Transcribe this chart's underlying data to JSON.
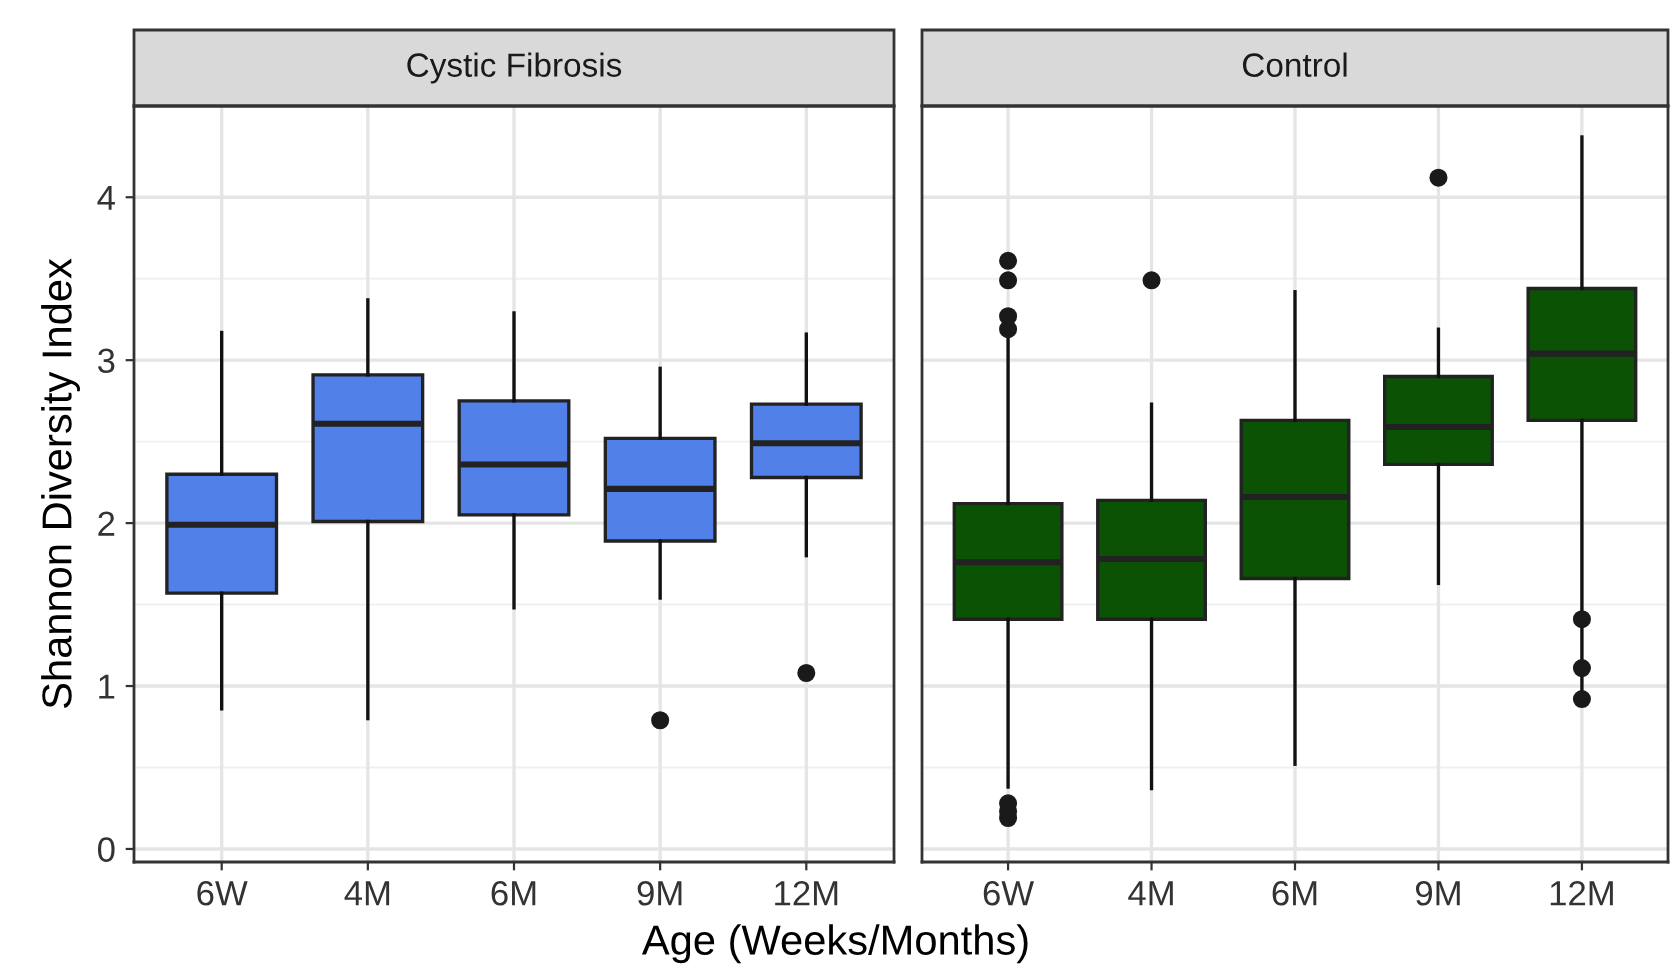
{
  "chart_data": [
    {
      "type": "box",
      "title": "Cystic Fibrosis",
      "xlabel": "Age (Weeks/Months)",
      "ylabel": "Shannon Diversity Index",
      "categories": [
        "6W",
        "4M",
        "6M",
        "9M",
        "12M"
      ],
      "ylim": [
        -0.08,
        4.56
      ],
      "yticks": [
        0,
        1,
        2,
        3,
        4
      ],
      "grid": true,
      "series": [
        {
          "color": "#5080e8",
          "boxes": [
            {
              "low": 0.86,
              "q1": 1.57,
              "median": 1.99,
              "q3": 2.3,
              "high": 3.17
            },
            {
              "low": 0.8,
              "q1": 2.01,
              "median": 2.61,
              "q3": 2.91,
              "high": 3.37
            },
            {
              "low": 1.48,
              "q1": 2.05,
              "median": 2.36,
              "q3": 2.75,
              "high": 3.29
            },
            {
              "low": 1.54,
              "q1": 1.89,
              "median": 2.21,
              "q3": 2.52,
              "high": 2.95,
              "outliers": [
                0.79
              ]
            },
            {
              "low": 1.8,
              "q1": 2.28,
              "median": 2.49,
              "q3": 2.73,
              "high": 3.16,
              "outliers": [
                1.08
              ]
            }
          ]
        }
      ]
    },
    {
      "type": "box",
      "title": "Control",
      "categories": [
        "6W",
        "4M",
        "6M",
        "9M",
        "12M"
      ],
      "ylim": [
        -0.08,
        4.56
      ],
      "yticks": [
        0,
        1,
        2,
        3,
        4
      ],
      "grid": true,
      "tick_labels": "x",
      "series": [
        {
          "color": "#0b5205",
          "boxes": [
            {
              "low": 0.38,
              "q1": 1.41,
              "median": 1.76,
              "q3": 2.12,
              "high": 3.17,
              "outliers": [
                3.61,
                3.49,
                3.27,
                3.19,
                0.28,
                0.23,
                0.19
              ]
            },
            {
              "low": 0.37,
              "q1": 1.41,
              "median": 1.78,
              "q3": 2.14,
              "high": 2.73,
              "outliers": [
                3.49
              ]
            },
            {
              "low": 0.52,
              "q1": 1.66,
              "median": 2.16,
              "q3": 2.63,
              "high": 3.42
            },
            {
              "low": 1.63,
              "q1": 2.36,
              "median": 2.59,
              "q3": 2.9,
              "high": 3.19,
              "outliers": [
                4.12
              ]
            },
            {
              "low": 0.92,
              "q1": 2.63,
              "median": 3.04,
              "q3": 3.44,
              "high": 4.37,
              "outliers": [
                1.41,
                1.11,
                0.92
              ]
            }
          ]
        }
      ]
    }
  ]
}
